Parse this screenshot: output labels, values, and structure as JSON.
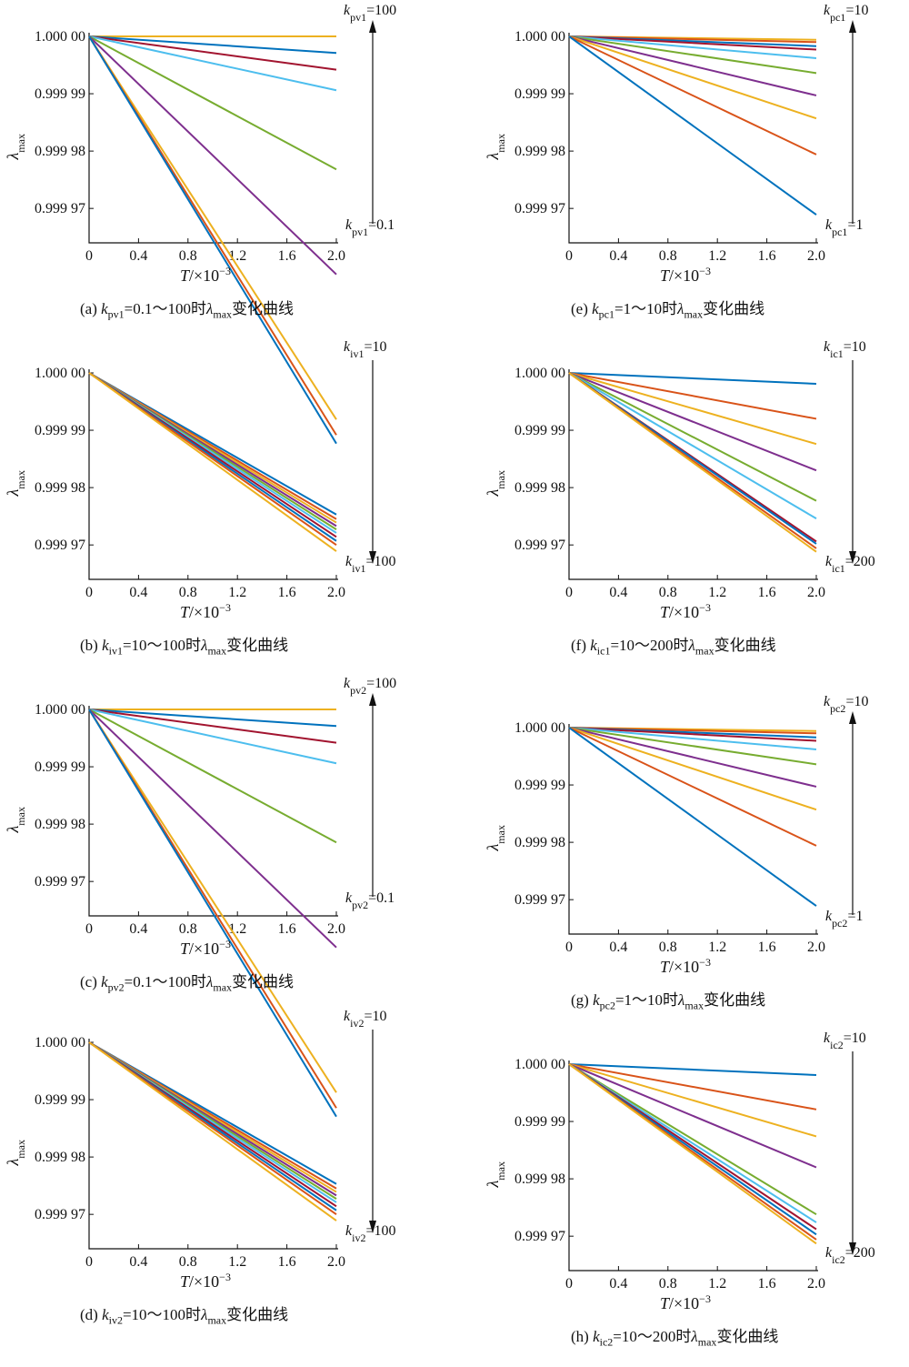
{
  "chart_data": [
    {
      "id": "a",
      "type": "line",
      "caption": {
        "prefix": "(a) ",
        "var": "k",
        "sub": "pv1",
        "range": "=0.1～100时",
        "lam": "λ",
        "lamsub": "max",
        "suffix": "变化曲线"
      },
      "xlabel": {
        "var": "T",
        "rest": "/×10",
        "exp": "−3"
      },
      "ylabel": {
        "var": "λ",
        "sub": "max"
      },
      "xticks": [
        "0",
        "0.4",
        "0.8",
        "1.2",
        "1.6",
        "2.0"
      ],
      "yticks": [
        "1.000 00",
        "0.999 99",
        "0.999 98",
        "0.999 97"
      ],
      "xlim": [
        0,
        2.0
      ],
      "ylim": [
        0.999964,
        1.0
      ],
      "arrow": "up",
      "top_label": {
        "var": "k",
        "sub": "pv1",
        "val": "=100"
      },
      "bottom_label": {
        "var": "k",
        "sub": "pv1",
        "val": "=0.1"
      },
      "series": [
        {
          "color": "#EDB120",
          "end": 1.0
        },
        {
          "color": "#0072BD",
          "end": 0.9999971
        },
        {
          "color": "#A2142F",
          "end": 0.9999942
        },
        {
          "color": "#4DBEEE",
          "end": 0.9999906
        },
        {
          "color": "#77AC30",
          "end": 0.9999768
        },
        {
          "color": "#7E2F8E",
          "end": 0.9999585
        },
        {
          "color": "#EDB120",
          "end": 0.9999332
        },
        {
          "color": "#D95319",
          "end": 0.9999305
        },
        {
          "color": "#0072BD",
          "end": 0.999929
        }
      ]
    },
    {
      "id": "e",
      "type": "line",
      "caption": {
        "prefix": "(e) ",
        "var": "k",
        "sub": "pc1",
        "range": "=1～10时",
        "lam": "λ",
        "lamsub": "max",
        "suffix": "变化曲线"
      },
      "xlabel": {
        "var": "T",
        "rest": "/×10",
        "exp": "−3"
      },
      "ylabel": {
        "var": "λ",
        "sub": "max"
      },
      "xticks": [
        "0",
        "0.4",
        "0.8",
        "1.2",
        "1.6",
        "2.0"
      ],
      "yticks": [
        "1.000 00",
        "0.999 99",
        "0.999 98",
        "0.999 97"
      ],
      "xlim": [
        0,
        2.0
      ],
      "ylim": [
        0.999964,
        1.0
      ],
      "arrow": "up",
      "top_label": {
        "var": "k",
        "sub": "pc1",
        "val": "=10"
      },
      "bottom_label": {
        "var": "k",
        "sub": "pc1",
        "val": "=1"
      },
      "series": [
        {
          "color": "#EDB120",
          "end": 0.9999994
        },
        {
          "color": "#D95319",
          "end": 0.999999
        },
        {
          "color": "#0072BD",
          "end": 0.9999983
        },
        {
          "color": "#A2142F",
          "end": 0.9999977
        },
        {
          "color": "#4DBEEE",
          "end": 0.9999962
        },
        {
          "color": "#77AC30",
          "end": 0.9999936
        },
        {
          "color": "#7E2F8E",
          "end": 0.9999897
        },
        {
          "color": "#EDB120",
          "end": 0.9999857
        },
        {
          "color": "#D95319",
          "end": 0.9999794
        },
        {
          "color": "#0072BD",
          "end": 0.9999689
        }
      ]
    },
    {
      "id": "b",
      "type": "line",
      "caption": {
        "prefix": "(b) ",
        "var": "k",
        "sub": "iv1",
        "range": "=10～100时",
        "lam": "λ",
        "lamsub": "max",
        "suffix": "变化曲线"
      },
      "xlabel": {
        "var": "T",
        "rest": "/×10",
        "exp": "−3"
      },
      "ylabel": {
        "var": "λ",
        "sub": "max"
      },
      "xticks": [
        "0",
        "0.4",
        "0.8",
        "1.2",
        "1.6",
        "2.0"
      ],
      "yticks": [
        "1.000 00",
        "0.999 99",
        "0.999 98",
        "0.999 97"
      ],
      "xlim": [
        0,
        2.0
      ],
      "ylim": [
        0.999964,
        1.0
      ],
      "arrow": "down",
      "top_label": {
        "var": "k",
        "sub": "iv1",
        "val": "=10"
      },
      "bottom_label": {
        "var": "k",
        "sub": "iv1",
        "val": "=100"
      },
      "series": [
        {
          "color": "#0072BD",
          "end": 0.9999753
        },
        {
          "color": "#D95319",
          "end": 0.9999745
        },
        {
          "color": "#EDB120",
          "end": 0.9999739
        },
        {
          "color": "#7E2F8E",
          "end": 0.9999733
        },
        {
          "color": "#77AC30",
          "end": 0.9999727
        },
        {
          "color": "#4DBEEE",
          "end": 0.9999721
        },
        {
          "color": "#A2142F",
          "end": 0.9999714
        },
        {
          "color": "#0072BD",
          "end": 0.9999707
        },
        {
          "color": "#D95319",
          "end": 0.99997
        },
        {
          "color": "#EDB120",
          "end": 0.9999689
        }
      ]
    },
    {
      "id": "f",
      "type": "line",
      "caption": {
        "prefix": "(f) ",
        "var": "k",
        "sub": "ic1",
        "range": "=10～200时",
        "lam": "λ",
        "lamsub": "max",
        "suffix": "变化曲线"
      },
      "xlabel": {
        "var": "T",
        "rest": "/×10",
        "exp": "−3"
      },
      "ylabel": {
        "var": "λ",
        "sub": "max"
      },
      "xticks": [
        "0",
        "0.4",
        "0.8",
        "1.2",
        "1.6",
        "2.0"
      ],
      "yticks": [
        "1.000 00",
        "0.999 99",
        "0.999 98",
        "0.999 97"
      ],
      "xlim": [
        0,
        2.0
      ],
      "ylim": [
        0.999964,
        1.0
      ],
      "arrow": "down",
      "top_label": {
        "var": "k",
        "sub": "ic1",
        "val": "=10"
      },
      "bottom_label": {
        "var": "k",
        "sub": "ic1",
        "val": "=200"
      },
      "series": [
        {
          "color": "#0072BD",
          "end": 0.9999981
        },
        {
          "color": "#D95319",
          "end": 0.999992
        },
        {
          "color": "#EDB120",
          "end": 0.9999876
        },
        {
          "color": "#7E2F8E",
          "end": 0.999983
        },
        {
          "color": "#77AC30",
          "end": 0.9999777
        },
        {
          "color": "#4DBEEE",
          "end": 0.9999746
        },
        {
          "color": "#A2142F",
          "end": 0.9999706
        },
        {
          "color": "#0072BD",
          "end": 0.9999702
        },
        {
          "color": "#D95319",
          "end": 0.9999694
        },
        {
          "color": "#EDB120",
          "end": 0.9999688
        }
      ]
    },
    {
      "id": "c",
      "type": "line",
      "caption": {
        "prefix": "(c) ",
        "var": "k",
        "sub": "pv2",
        "range": "=0.1～100时",
        "lam": "λ",
        "lamsub": "max",
        "suffix": "变化曲线"
      },
      "xlabel": {
        "var": "T",
        "rest": "/×10",
        "exp": "−3"
      },
      "ylabel": {
        "var": "λ",
        "sub": "max"
      },
      "xticks": [
        "0",
        "0.4",
        "0.8",
        "1.2",
        "1.6",
        "2.0"
      ],
      "yticks": [
        "1.000 00",
        "0.999 99",
        "0.999 98",
        "0.999 97"
      ],
      "xlim": [
        0,
        2.0
      ],
      "ylim": [
        0.999964,
        1.0
      ],
      "arrow": "up",
      "top_label": {
        "var": "k",
        "sub": "pv2",
        "val": "=100"
      },
      "bottom_label": {
        "var": "k",
        "sub": "pv2",
        "val": "=0.1"
      },
      "series": [
        {
          "color": "#EDB120",
          "end": 1.0
        },
        {
          "color": "#0072BD",
          "end": 0.9999971
        },
        {
          "color": "#A2142F",
          "end": 0.9999942
        },
        {
          "color": "#4DBEEE",
          "end": 0.9999906
        },
        {
          "color": "#77AC30",
          "end": 0.9999768
        },
        {
          "color": "#7E2F8E",
          "end": 0.9999585
        },
        {
          "color": "#EDB120",
          "end": 0.9999332
        },
        {
          "color": "#D95319",
          "end": 0.9999305
        },
        {
          "color": "#0072BD",
          "end": 0.999929
        }
      ]
    },
    {
      "id": "g",
      "type": "line",
      "caption": {
        "prefix": "(g) ",
        "var": "k",
        "sub": "pc2",
        "range": "=1～10时",
        "lam": "λ",
        "lamsub": "max",
        "suffix": "变化曲线"
      },
      "xlabel": {
        "var": "T",
        "rest": "/×10",
        "exp": "−3"
      },
      "ylabel": {
        "var": "λ",
        "sub": "max"
      },
      "xticks": [
        "0",
        "0.4",
        "0.8",
        "1.2",
        "1.6",
        "2.0"
      ],
      "yticks": [
        "1.000 00",
        "0.999 99",
        "0.999 98",
        "0.999 97"
      ],
      "xlim": [
        0,
        2.0
      ],
      "ylim": [
        0.999964,
        1.0
      ],
      "arrow": "up",
      "top_label": {
        "var": "k",
        "sub": "pc2",
        "val": "=10"
      },
      "bottom_label": {
        "var": "k",
        "sub": "pc2",
        "val": "=1"
      },
      "series": [
        {
          "color": "#EDB120",
          "end": 0.9999994
        },
        {
          "color": "#D95319",
          "end": 0.999999
        },
        {
          "color": "#0072BD",
          "end": 0.9999983
        },
        {
          "color": "#A2142F",
          "end": 0.9999977
        },
        {
          "color": "#4DBEEE",
          "end": 0.9999962
        },
        {
          "color": "#77AC30",
          "end": 0.9999936
        },
        {
          "color": "#7E2F8E",
          "end": 0.9999897
        },
        {
          "color": "#EDB120",
          "end": 0.9999857
        },
        {
          "color": "#D95319",
          "end": 0.9999794
        },
        {
          "color": "#0072BD",
          "end": 0.9999689
        }
      ]
    },
    {
      "id": "d",
      "type": "line",
      "caption": {
        "prefix": "(d) ",
        "var": "k",
        "sub": "iv2",
        "range": "=10～100时",
        "lam": "λ",
        "lamsub": "max",
        "suffix": "变化曲线"
      },
      "xlabel": {
        "var": "T",
        "rest": "/×10",
        "exp": "−3"
      },
      "ylabel": {
        "var": "λ",
        "sub": "max"
      },
      "xticks": [
        "0",
        "0.4",
        "0.8",
        "1.2",
        "1.6",
        "2.0"
      ],
      "yticks": [
        "1.000 00",
        "0.999 99",
        "0.999 98",
        "0.999 97"
      ],
      "xlim": [
        0,
        2.0
      ],
      "ylim": [
        0.999964,
        1.0
      ],
      "arrow": "down",
      "top_label": {
        "var": "k",
        "sub": "iv2",
        "val": "=10"
      },
      "bottom_label": {
        "var": "k",
        "sub": "iv2",
        "val": "=100"
      },
      "series": [
        {
          "color": "#0072BD",
          "end": 0.9999753
        },
        {
          "color": "#D95319",
          "end": 0.9999745
        },
        {
          "color": "#EDB120",
          "end": 0.9999739
        },
        {
          "color": "#7E2F8E",
          "end": 0.9999733
        },
        {
          "color": "#77AC30",
          "end": 0.9999727
        },
        {
          "color": "#4DBEEE",
          "end": 0.9999721
        },
        {
          "color": "#A2142F",
          "end": 0.9999714
        },
        {
          "color": "#0072BD",
          "end": 0.9999707
        },
        {
          "color": "#D95319",
          "end": 0.99997
        },
        {
          "color": "#EDB120",
          "end": 0.9999689
        }
      ]
    },
    {
      "id": "h",
      "type": "line",
      "caption": {
        "prefix": "(h) ",
        "var": "k",
        "sub": "ic2",
        "range": "=10～200时",
        "lam": "λ",
        "lamsub": "max",
        "suffix": "变化曲线"
      },
      "xlabel": {
        "var": "T",
        "rest": "/×10",
        "exp": "−3"
      },
      "ylabel": {
        "var": "λ",
        "sub": "max"
      },
      "xticks": [
        "0",
        "0.4",
        "0.8",
        "1.2",
        "1.6",
        "2.0"
      ],
      "yticks": [
        "1.000 00",
        "0.999 99",
        "0.999 98",
        "0.999 97"
      ],
      "xlim": [
        0,
        2.0
      ],
      "ylim": [
        0.999964,
        1.0
      ],
      "arrow": "down",
      "top_label": {
        "var": "k",
        "sub": "ic2",
        "val": "=10"
      },
      "bottom_label": {
        "var": "k",
        "sub": "ic2",
        "val": "=200"
      },
      "series": [
        {
          "color": "#0072BD",
          "end": 0.9999981
        },
        {
          "color": "#D95319",
          "end": 0.9999921
        },
        {
          "color": "#EDB120",
          "end": 0.9999874
        },
        {
          "color": "#7E2F8E",
          "end": 0.999982
        },
        {
          "color": "#77AC30",
          "end": 0.9999738
        },
        {
          "color": "#4DBEEE",
          "end": 0.9999724
        },
        {
          "color": "#A2142F",
          "end": 0.9999712
        },
        {
          "color": "#0072BD",
          "end": 0.9999703
        },
        {
          "color": "#D95319",
          "end": 0.9999694
        },
        {
          "color": "#EDB120",
          "end": 0.9999687
        }
      ]
    }
  ]
}
